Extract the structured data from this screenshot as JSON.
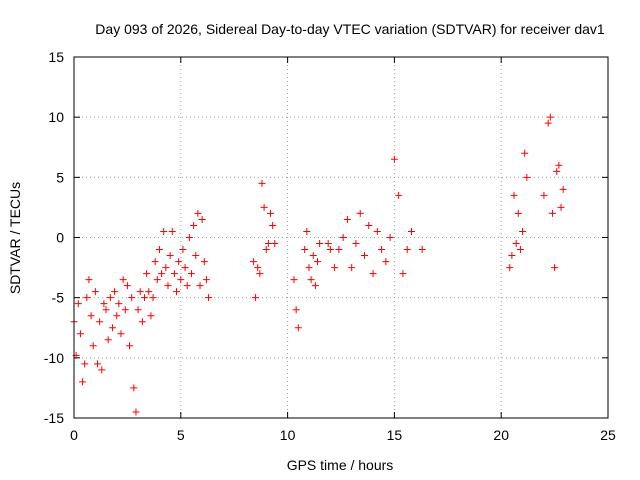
{
  "chart_data": {
    "type": "scatter",
    "title": "Day 093 of 2026, Sidereal Day-to-day VTEC variation (SDTVAR) for receiver dav1",
    "xlabel": "GPS time / hours",
    "ylabel": "SDTVAR / TECUs",
    "xlim": [
      0,
      25
    ],
    "ylim": [
      -15,
      15
    ],
    "x_ticks": [
      0,
      5,
      10,
      15,
      20,
      25
    ],
    "y_ticks": [
      -15,
      -10,
      -5,
      0,
      5,
      10,
      15
    ],
    "x_tick_labels": [
      "0",
      "5",
      "10",
      "15",
      "20",
      "25"
    ],
    "y_tick_labels": [
      "-15",
      "-10",
      "-5",
      "0",
      "5",
      "10",
      "15"
    ],
    "grid": true,
    "marker": "+",
    "color": "#ff0000",
    "series": [
      {
        "name": "SDTVAR",
        "x": [
          0.0,
          0.1,
          0.2,
          0.3,
          0.4,
          0.5,
          0.6,
          0.7,
          0.8,
          0.9,
          1.0,
          1.1,
          1.2,
          1.3,
          1.4,
          1.5,
          1.6,
          1.7,
          1.8,
          1.9,
          2.0,
          2.1,
          2.2,
          2.3,
          2.4,
          2.5,
          2.6,
          2.7,
          2.8,
          2.9,
          3.0,
          3.1,
          3.2,
          3.3,
          3.4,
          3.5,
          3.6,
          3.7,
          3.8,
          3.9,
          4.0,
          4.1,
          4.2,
          4.3,
          4.4,
          4.5,
          4.6,
          4.7,
          4.8,
          4.9,
          5.0,
          5.1,
          5.2,
          5.3,
          5.4,
          5.5,
          5.6,
          5.7,
          5.8,
          5.9,
          6.0,
          6.1,
          6.2,
          6.3,
          8.4,
          8.5,
          8.6,
          8.7,
          8.8,
          8.9,
          9.0,
          9.1,
          9.2,
          9.3,
          9.4,
          10.3,
          10.4,
          10.5,
          10.8,
          10.9,
          11.0,
          11.1,
          11.2,
          11.3,
          11.4,
          11.5,
          11.9,
          12.0,
          12.2,
          12.4,
          12.6,
          12.8,
          13.0,
          13.2,
          13.4,
          13.6,
          13.8,
          14.0,
          14.2,
          14.4,
          14.6,
          14.8,
          15.0,
          15.2,
          15.4,
          15.6,
          15.8,
          16.3,
          20.4,
          20.5,
          20.6,
          20.7,
          20.8,
          20.9,
          21.0,
          21.1,
          21.2,
          22.0,
          22.2,
          22.3,
          22.4,
          22.5,
          22.6,
          22.7,
          22.8,
          22.9
        ],
        "y": [
          -7.0,
          -9.8,
          -5.5,
          -8.0,
          -12.0,
          -10.5,
          -5.0,
          -3.5,
          -6.5,
          -9.0,
          -4.5,
          -10.5,
          -7.0,
          -11.0,
          -5.5,
          -6.0,
          -8.5,
          -5.0,
          -7.5,
          -4.5,
          -6.5,
          -5.5,
          -8.0,
          -3.5,
          -6.0,
          -4.0,
          -9.0,
          -5.0,
          -12.5,
          -14.5,
          -6.0,
          -4.5,
          -7.0,
          -5.0,
          -3.0,
          -4.5,
          -6.5,
          -5.0,
          -2.0,
          -3.5,
          -1.0,
          -3.0,
          0.5,
          -2.5,
          -4.0,
          -1.5,
          0.5,
          -3.0,
          -4.5,
          -2.0,
          -3.5,
          -1.0,
          -2.5,
          -4.0,
          0.0,
          -3.0,
          1.0,
          -1.5,
          2.0,
          -4.0,
          1.5,
          -2.0,
          -3.5,
          -5.0,
          -2.0,
          -5.0,
          -2.5,
          -3.0,
          4.5,
          2.5,
          -1.0,
          -0.5,
          2.0,
          1.0,
          -0.5,
          -3.5,
          -6.0,
          -7.5,
          -1.0,
          0.5,
          -2.5,
          -3.5,
          -1.5,
          -4.0,
          -2.0,
          -0.5,
          -0.5,
          -1.0,
          -2.5,
          -1.0,
          0.0,
          1.5,
          -2.5,
          -0.5,
          2.0,
          -1.5,
          1.0,
          -3.0,
          0.5,
          -1.0,
          -2.0,
          0.0,
          6.5,
          3.5,
          -3.0,
          -1.0,
          0.5,
          -1.0,
          -2.5,
          -1.5,
          3.5,
          -0.5,
          2.0,
          -1.0,
          0.5,
          7.0,
          5.0,
          3.5,
          9.5,
          10.0,
          2.0,
          -2.5,
          5.5,
          6.0,
          2.5,
          4.0
        ]
      }
    ]
  }
}
